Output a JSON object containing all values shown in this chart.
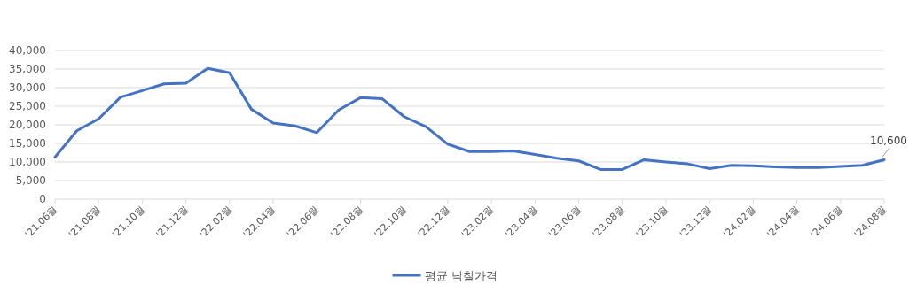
{
  "chart_data": {
    "type": "line",
    "categories": [
      "'21.06월",
      null,
      "'21.08월",
      null,
      "'21.10월",
      null,
      "'21.12월",
      null,
      "'22.02월",
      null,
      "'22.04월",
      null,
      "'22.06월",
      null,
      "'22.08월",
      null,
      "'22.10월",
      null,
      "'22.12월",
      null,
      "'23.02월",
      null,
      "'23.04월",
      null,
      "'23.06월",
      null,
      "'23.08월",
      null,
      "'23.10월",
      null,
      "'23.12월",
      null,
      "'24.02월",
      null,
      "'24.04월",
      null,
      "'24.06월",
      null,
      "'24.08월"
    ],
    "series": [
      {
        "name": "평균 낙찰가격",
        "color": "#4472c4",
        "values": [
          11300,
          18400,
          21600,
          27400,
          29200,
          31000,
          31200,
          35200,
          34000,
          24200,
          20500,
          19700,
          17900,
          24000,
          27300,
          27000,
          22200,
          19500,
          14800,
          12800,
          12800,
          13000,
          12000,
          11000,
          10300,
          8000,
          8000,
          10600,
          10000,
          9500,
          8200,
          9100,
          9000,
          8700,
          8500,
          8500,
          8800,
          9100,
          10600
        ],
        "value_labels": [
          null,
          null,
          null,
          null,
          null,
          null,
          null,
          null,
          null,
          null,
          null,
          null,
          null,
          null,
          null,
          null,
          null,
          null,
          null,
          null,
          null,
          null,
          null,
          null,
          null,
          null,
          null,
          null,
          null,
          null,
          null,
          null,
          null,
          null,
          null,
          null,
          null,
          null,
          "10,600"
        ]
      }
    ],
    "ylim": [
      0,
      40000
    ],
    "yticks": [
      {
        "value": 0,
        "label": "0"
      },
      {
        "value": 5000,
        "label": "5,000"
      },
      {
        "value": 10000,
        "label": "10,000"
      },
      {
        "value": 15000,
        "label": "15,000"
      },
      {
        "value": 20000,
        "label": "20,000"
      },
      {
        "value": 25000,
        "label": "25,000"
      },
      {
        "value": 30000,
        "label": "30,000"
      },
      {
        "value": 35000,
        "label": "35,000"
      },
      {
        "value": 40000,
        "label": "40,000"
      }
    ],
    "grid": "y",
    "legend": "bottom",
    "marker": "none"
  }
}
